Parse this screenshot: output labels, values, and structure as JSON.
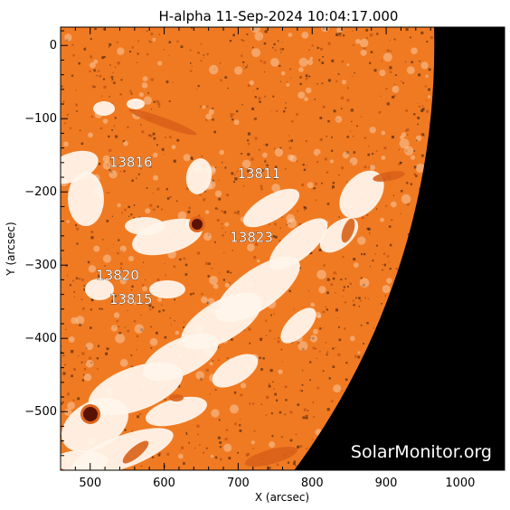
{
  "title": "H-alpha 11-Sep-2024 10:04:17.000",
  "xlabel": "X (arcsec)",
  "ylabel": "Y (arcsec)",
  "watermark": "SolarMonitor.org",
  "colors": {
    "background": "#ffffff",
    "disk_base": "#f07a22",
    "disk_dark": "#b8500f",
    "plage": "#fff4ea",
    "space": "#000000",
    "frame": "#000000"
  },
  "axes": {
    "xlim": [
      460,
      1060
    ],
    "ylim": [
      -580,
      25
    ],
    "x_ticks": [
      {
        "value": 500,
        "label": "500"
      },
      {
        "value": 600,
        "label": "600"
      },
      {
        "value": 700,
        "label": "700"
      },
      {
        "value": 800,
        "label": "800"
      },
      {
        "value": 900,
        "label": "900"
      },
      {
        "value": 1000,
        "label": "1000"
      }
    ],
    "y_ticks": [
      {
        "value": 0,
        "label": "0"
      },
      {
        "value": -100,
        "label": "−100"
      },
      {
        "value": -200,
        "label": "−200"
      },
      {
        "value": -300,
        "label": "−300"
      },
      {
        "value": -400,
        "label": "−400"
      },
      {
        "value": -500,
        "label": "−500"
      }
    ]
  },
  "regions": [
    {
      "label": "13816",
      "x": 555,
      "y": -166
    },
    {
      "label": "13811",
      "x": 728,
      "y": -181
    },
    {
      "label": "13823",
      "x": 718,
      "y": -268
    },
    {
      "label": "13820",
      "x": 537,
      "y": -320
    },
    {
      "label": "13815",
      "x": 555,
      "y": -353
    }
  ],
  "limb": {
    "cx": 0,
    "cy": 0,
    "r": 965
  }
}
